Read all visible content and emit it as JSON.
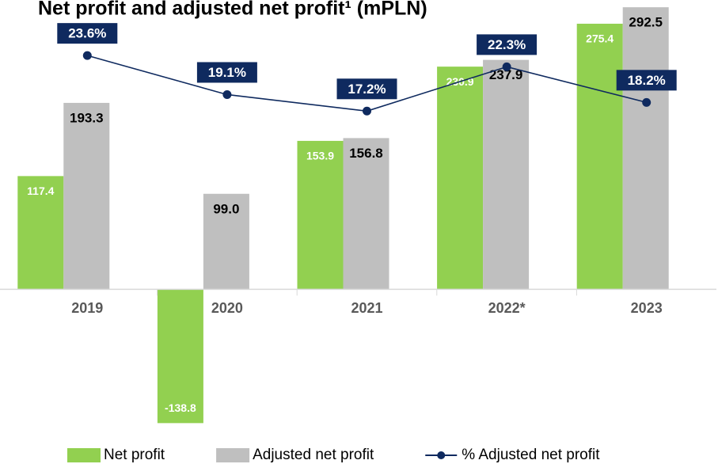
{
  "chart_data": {
    "type": "bar",
    "title": "Net profit and adjusted net profit¹ (mPLN)",
    "categories": [
      "2019",
      "2020",
      "2021",
      "2022*",
      "2023"
    ],
    "ylim": [
      -150,
      300
    ],
    "y2lim": [
      -20,
      30
    ],
    "series": [
      {
        "name": "Net profit",
        "color": "#92d050",
        "values": [
          117.4,
          -138.8,
          153.9,
          230.9,
          275.4
        ],
        "value_labels": [
          "117.4",
          "-138.8",
          "153.9",
          "230.9",
          "275.4"
        ]
      },
      {
        "name": "Adjusted net profit",
        "color": "#bfbfbf",
        "values": [
          193.3,
          99.0,
          156.8,
          237.9,
          292.5
        ],
        "value_labels": [
          "193.3",
          "99.0",
          "156.8",
          "237.9",
          "292.5"
        ]
      },
      {
        "name": "% Adjusted net profit",
        "color": "#0f2a5f",
        "type": "line",
        "axis": "y2",
        "values": [
          23.6,
          19.1,
          17.2,
          22.3,
          18.2
        ],
        "value_labels": [
          "23.6%",
          "19.1%",
          "17.2%",
          "22.3%",
          "18.2%"
        ]
      }
    ]
  }
}
